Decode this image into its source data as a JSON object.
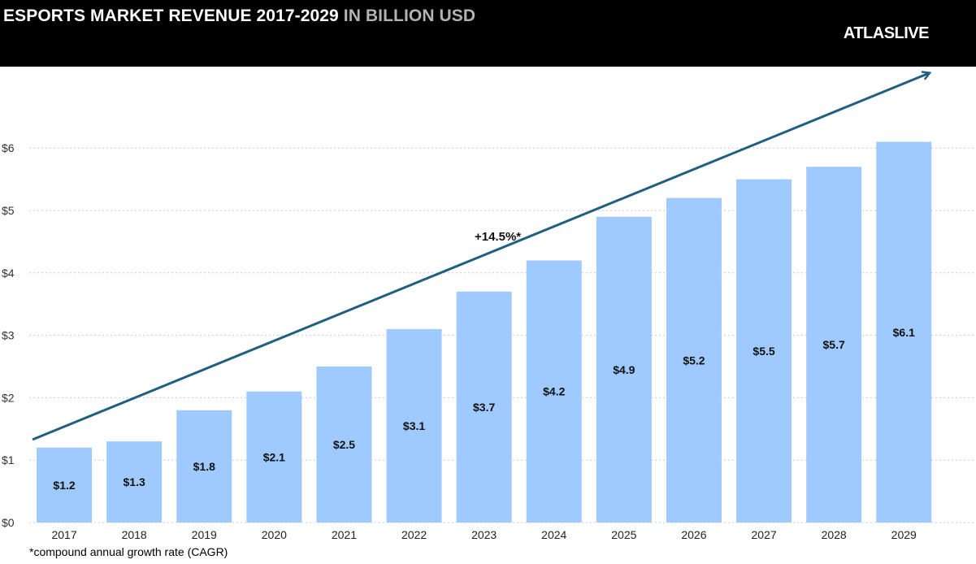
{
  "header": {
    "title_main": "ESPORTS MARKET REVENUE 2017-2029",
    "title_unit": "IN BILLION USD",
    "logo": "ATLASLIVE"
  },
  "colors": {
    "header_bg": "#000000",
    "bar": "#9fcaff",
    "trend_arrow": "#1f5f7f",
    "grid": "#cccccc"
  },
  "chart_data": {
    "type": "bar",
    "categories": [
      "2017",
      "2018",
      "2019",
      "2020",
      "2021",
      "2022",
      "2023",
      "2024",
      "2025",
      "2026",
      "2027",
      "2028",
      "2029"
    ],
    "values": [
      1.2,
      1.3,
      1.8,
      2.1,
      2.5,
      3.1,
      3.7,
      4.2,
      4.9,
      5.2,
      5.5,
      5.7,
      6.1
    ],
    "data_labels": [
      "$1.2",
      "$1.3",
      "$1.8",
      "$2.1",
      "$2.5",
      "$3.1",
      "$3.7",
      "$4.2",
      "$4.9",
      "$5.2",
      "$5.5",
      "$5.7",
      "$6.1"
    ],
    "y_ticks": [
      0,
      1,
      2,
      3,
      4,
      5,
      6
    ],
    "y_tick_labels": [
      "$0",
      "$1",
      "$2",
      "$3",
      "$4",
      "$5",
      "$6"
    ],
    "ylim": [
      0,
      6.1
    ],
    "grid": true,
    "legend": "none",
    "annotation": "+14.5%*",
    "trend_line": {
      "from": [
        2017,
        1.33
      ],
      "to": [
        2029,
        7.2
      ]
    },
    "footnote": "*compound annual growth rate (CAGR)"
  }
}
